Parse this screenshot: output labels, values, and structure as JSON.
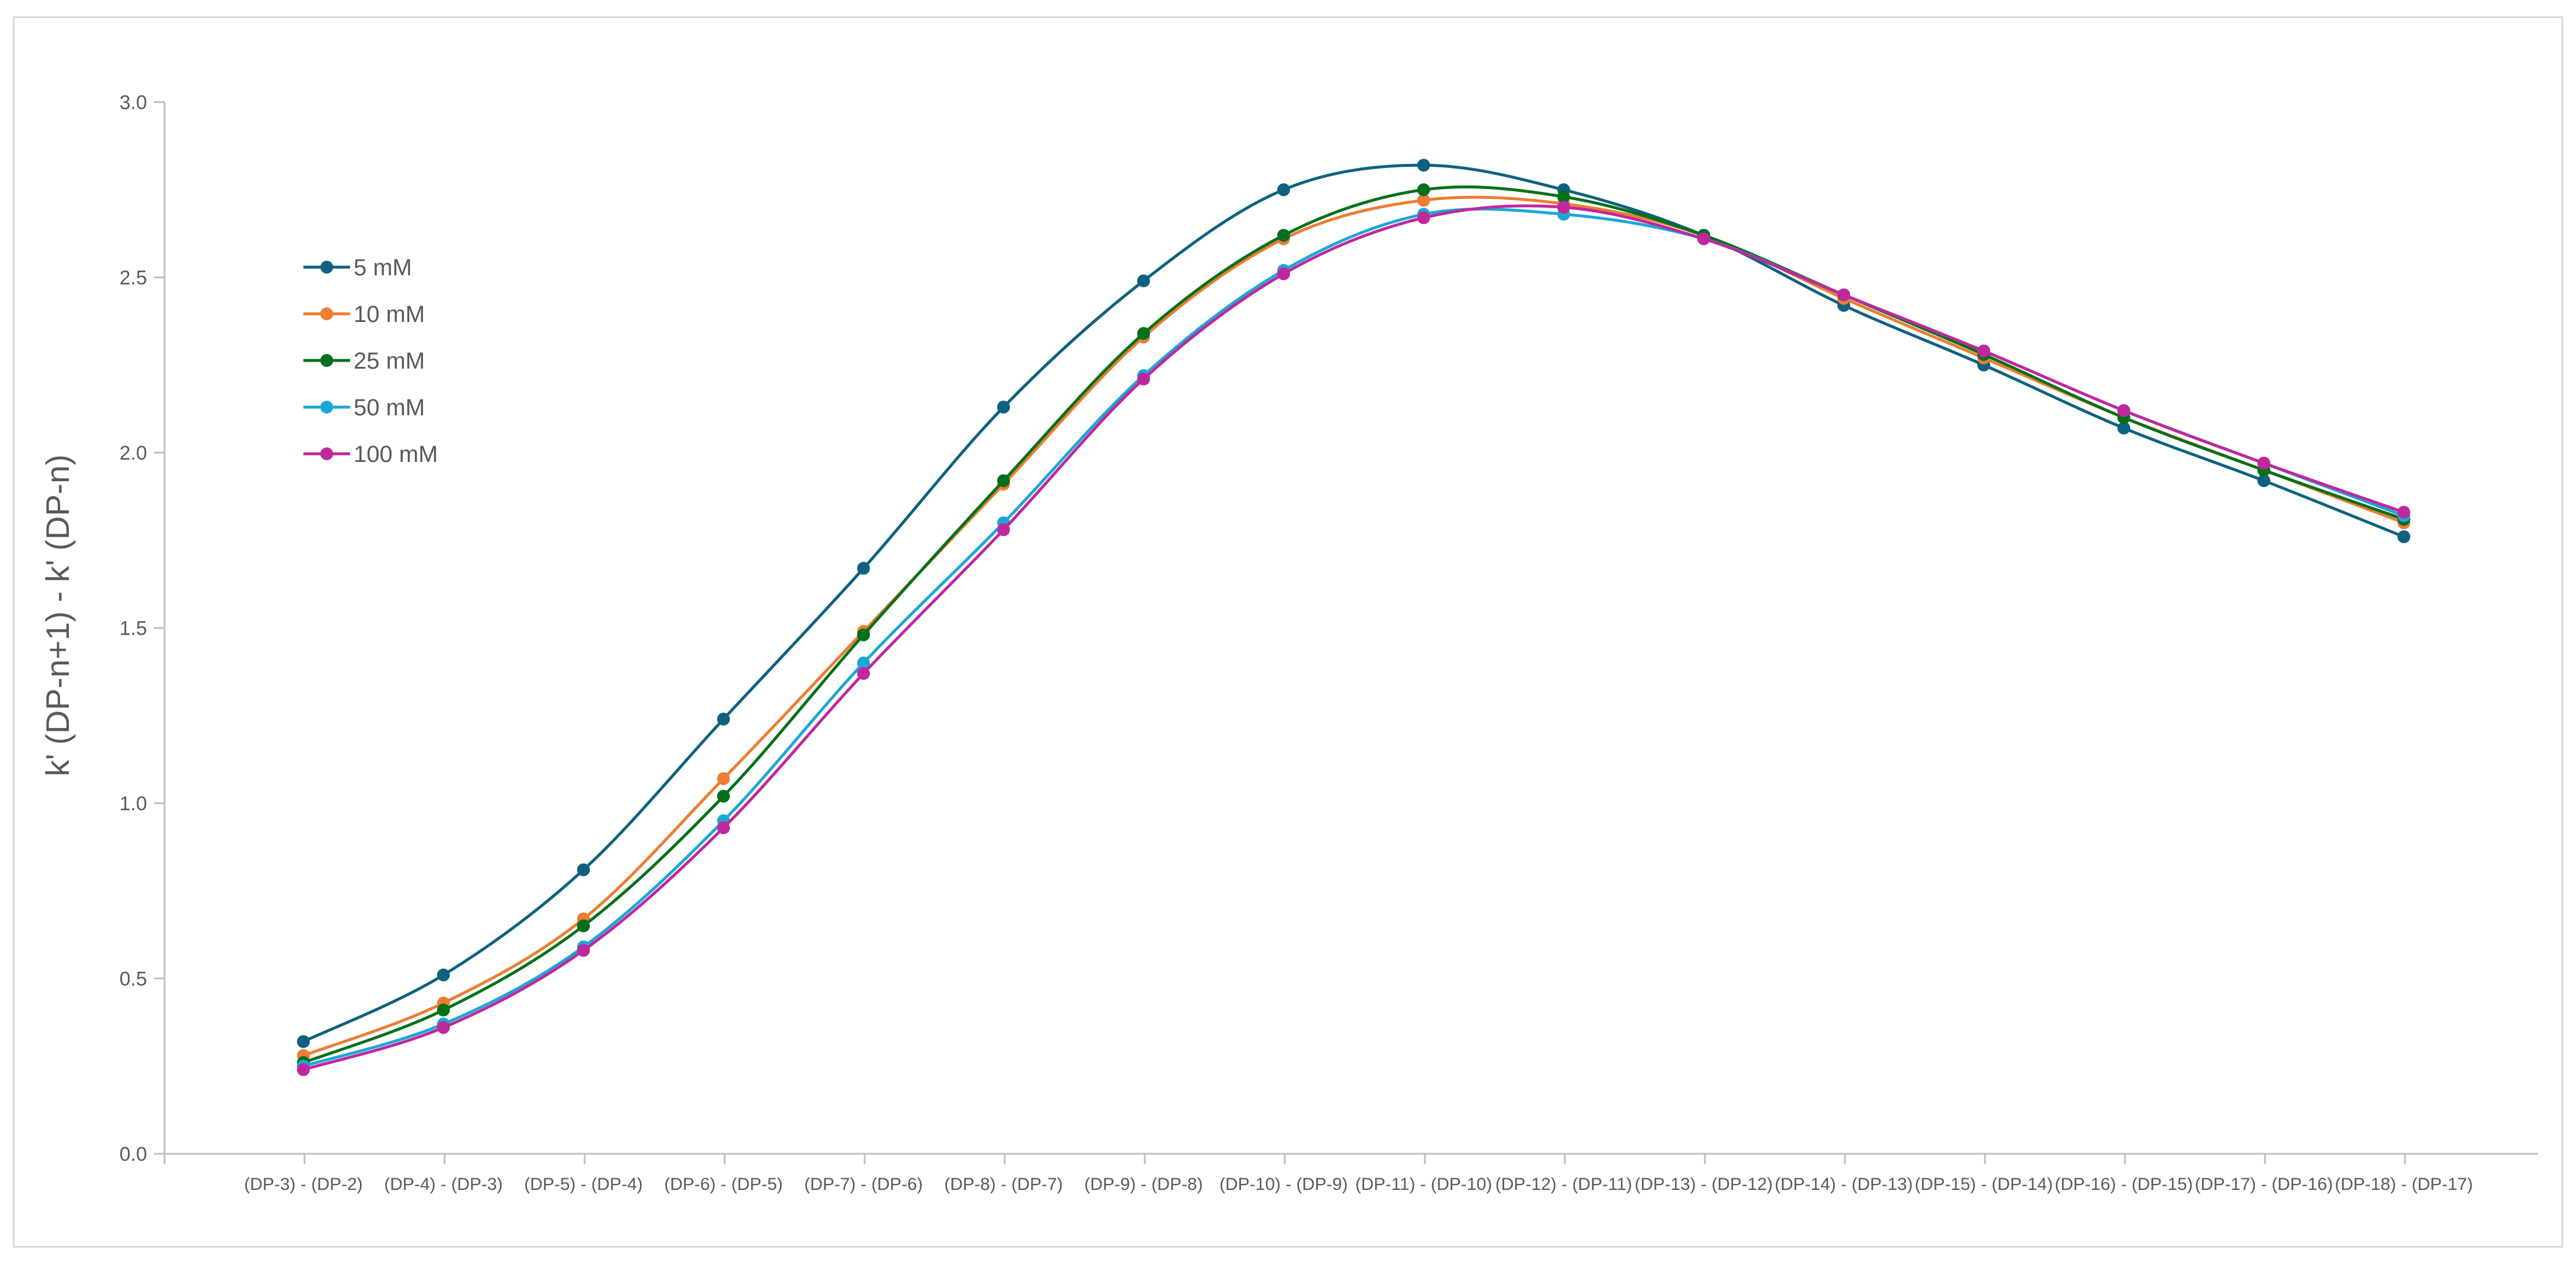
{
  "chart_data": {
    "type": "line",
    "title": "",
    "xlabel": "",
    "ylabel": "k' (DP-n+1) - k' (DP-n)",
    "ylim": [
      0,
      3.0
    ],
    "yticks": [
      "0.0",
      "0.5",
      "1.0",
      "1.5",
      "2.0",
      "2.5",
      "3.0"
    ],
    "grid": false,
    "legend_position": "top-left",
    "categories": [
      "(DP-3) - (DP-2)",
      "(DP-4) - (DP-3)",
      "(DP-5) - (DP-4)",
      "(DP-6) - (DP-5)",
      "(DP-7) - (DP-6)",
      "(DP-8) - (DP-7)",
      "(DP-9) - (DP-8)",
      "(DP-10) - (DP-9)",
      "(DP-11) - (DP-10)",
      "(DP-12) - (DP-11)",
      "(DP-13) - (DP-12)",
      "(DP-14) - (DP-13)",
      "(DP-15) - (DP-14)",
      "(DP-16) - (DP-15)",
      "(DP-17) - (DP-16)",
      "(DP-18) - (DP-17)"
    ],
    "series": [
      {
        "name": "5 mM",
        "color": "#0e6180",
        "values": [
          0.32,
          0.51,
          0.81,
          1.24,
          1.67,
          2.13,
          2.49,
          2.75,
          2.82,
          2.75,
          2.62,
          2.42,
          2.25,
          2.07,
          1.92,
          1.76
        ]
      },
      {
        "name": "10 mM",
        "color": "#ed7d31",
        "values": [
          0.28,
          0.43,
          0.67,
          1.07,
          1.49,
          1.91,
          2.33,
          2.61,
          2.72,
          2.71,
          2.62,
          2.44,
          2.27,
          2.1,
          1.95,
          1.8
        ]
      },
      {
        "name": "25 mM",
        "color": "#00701a",
        "values": [
          0.26,
          0.41,
          0.65,
          1.02,
          1.48,
          1.92,
          2.34,
          2.62,
          2.75,
          2.73,
          2.62,
          2.45,
          2.28,
          2.1,
          1.95,
          1.81
        ]
      },
      {
        "name": "50 mM",
        "color": "#1aa7d8",
        "values": [
          0.25,
          0.37,
          0.59,
          0.95,
          1.4,
          1.8,
          2.22,
          2.52,
          2.68,
          2.68,
          2.61,
          2.45,
          2.29,
          2.12,
          1.97,
          1.82
        ]
      },
      {
        "name": "100 mM",
        "color": "#c0279d",
        "values": [
          0.24,
          0.36,
          0.58,
          0.93,
          1.37,
          1.78,
          2.21,
          2.51,
          2.67,
          2.7,
          2.61,
          2.45,
          2.29,
          2.12,
          1.97,
          1.83
        ]
      }
    ]
  }
}
